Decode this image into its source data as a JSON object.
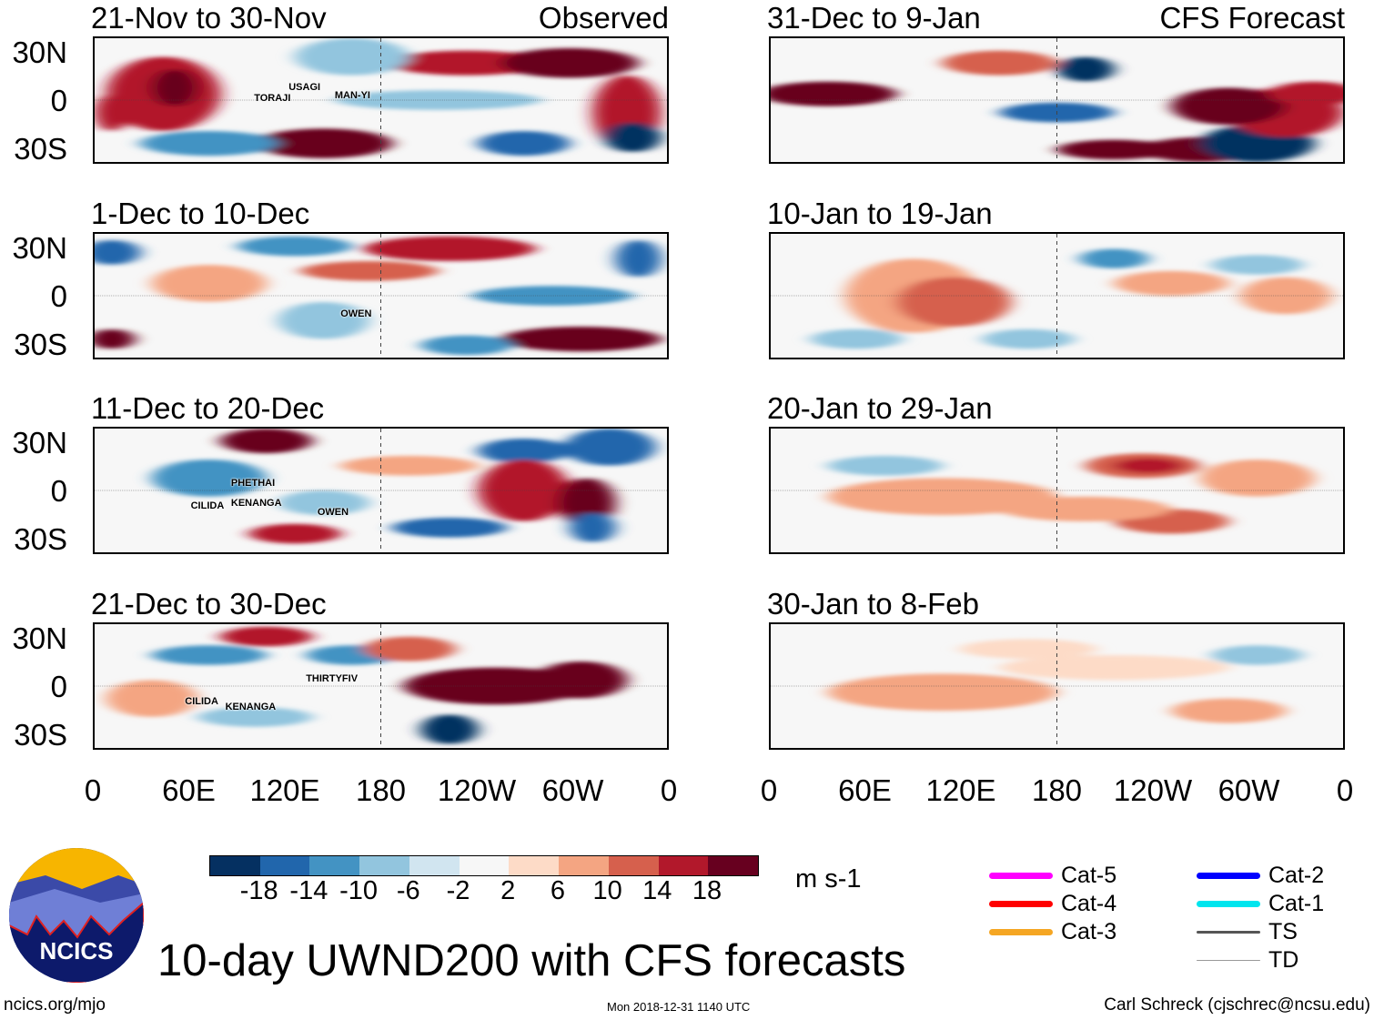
{
  "observed_label": "Observed",
  "forecast_label": "CFS Forecast",
  "panels_left": [
    {
      "title": "21-Nov to 30-Nov",
      "storms": [
        "TORAJI",
        "USAGI",
        "MAN-YI"
      ]
    },
    {
      "title": "1-Dec to 10-Dec",
      "storms": [
        "OWEN"
      ]
    },
    {
      "title": "11-Dec to 20-Dec",
      "storms": [
        "PHETHAI",
        "CILIDA",
        "KENANGA",
        "OWEN"
      ]
    },
    {
      "title": "21-Dec to 30-Dec",
      "storms": [
        "THIRTYFIV",
        "CILIDA",
        "KENANGA"
      ]
    }
  ],
  "panels_right": [
    {
      "title": "31-Dec to 9-Jan"
    },
    {
      "title": "10-Jan to 19-Jan"
    },
    {
      "title": "20-Jan to 29-Jan"
    },
    {
      "title": "30-Jan to 8-Feb"
    }
  ],
  "lat_labels": [
    "30N",
    "0",
    "30S"
  ],
  "lon_labels": [
    "0",
    "60E",
    "120E",
    "180",
    "120W",
    "60W",
    "0"
  ],
  "colorbar": {
    "colors": [
      "#053061",
      "#2166ac",
      "#4393c3",
      "#92c5de",
      "#d1e5f0",
      "#f7f7f7",
      "#fddbc7",
      "#f4a582",
      "#d6604d",
      "#b2182b",
      "#67001f"
    ],
    "labels": [
      "-18",
      "-14",
      "-10",
      "-6",
      "-2",
      "2",
      "6",
      "10",
      "14",
      "18"
    ],
    "units": "m s-1"
  },
  "legend": [
    {
      "label": "Cat-5",
      "color": "#ff00ff"
    },
    {
      "label": "Cat-4",
      "color": "#ff0000"
    },
    {
      "label": "Cat-3",
      "color": "#f5a623"
    },
    {
      "label": "Cat-2",
      "color": "#0000ff"
    },
    {
      "label": "Cat-1",
      "color": "#00e5ee"
    },
    {
      "label": "TS",
      "color": "#555555"
    },
    {
      "label": "TD",
      "color": "#999999"
    }
  ],
  "logo_text": "NCICS",
  "main_title": "10-day UWND200 with CFS forecasts",
  "footer": {
    "left": "ncics.org/mjo",
    "center": "Mon 2018-12-31 1140 UTC",
    "right": "Carl Schreck (cjschrec@ncsu.edu)"
  }
}
